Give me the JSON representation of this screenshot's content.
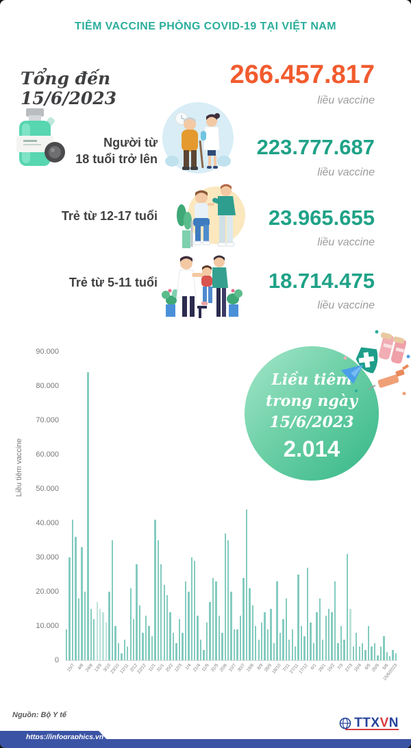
{
  "page": {
    "title": "TIÊM VACCINE PHÒNG COVID-19 TẠI VIỆT NAM"
  },
  "total": {
    "date_label": "Tổng đến 15/6/2023",
    "value": "266.457.817",
    "unit": "liều vaccine"
  },
  "groups": [
    {
      "label_line1": "Người từ",
      "label_line2": "18 tuổi trở lên",
      "value": "223.777.687",
      "unit": "liều vaccine",
      "illustration": "elderly-with-nurse"
    },
    {
      "label_line1": "Trẻ từ 12-17 tuổi",
      "label_line2": "",
      "value": "23.965.655",
      "unit": "liều vaccine",
      "illustration": "teen-vaccination"
    },
    {
      "label_line1": "Trẻ từ 5-11 tuổi",
      "label_line2": "",
      "value": "18.714.475",
      "unit": "liều vaccine",
      "illustration": "child-vaccination"
    }
  ],
  "daily_badge": {
    "line1": "Liều tiêm",
    "line2": "trong ngày",
    "date": "15/6/2023",
    "value": "2.014"
  },
  "chart_data": {
    "type": "bar",
    "ylabel": "Liều tiêm vaccine",
    "ylim": [
      0,
      90000
    ],
    "yticks": [
      "90.000",
      "80.000",
      "70.000",
      "60.000",
      "50.000",
      "40.000",
      "30.000",
      "20.000",
      "10.000",
      "0"
    ],
    "grid": false,
    "bar_color": "#84CBC0",
    "bar_color_light": "#BCE2DB",
    "light_indices": [
      10,
      11,
      12,
      13,
      93
    ],
    "x_tick_labels": [
      "15/7",
      "4/8",
      "24/8",
      "13/9",
      "3/10",
      "23/10",
      "12/11",
      "2/12",
      "22/12",
      "11/1",
      "31/1",
      "20/2",
      "12/3",
      "1/4",
      "21/4",
      "11/5",
      "31/5",
      "20/6",
      "10/7",
      "30/7",
      "19/8",
      "8/9",
      "28/9",
      "18/10",
      "7/11",
      "27/11",
      "17/12",
      "6/1",
      "26/1",
      "15/2",
      "7/3",
      "27/3",
      "16/4",
      "6/5",
      "26/5",
      "5/6",
      "15/6/2023"
    ],
    "values": [
      9000,
      30000,
      41000,
      36000,
      18000,
      33000,
      20000,
      84000,
      15000,
      12000,
      17000,
      15000,
      14000,
      11000,
      20000,
      35000,
      10000,
      5000,
      2000,
      6000,
      4000,
      21000,
      12000,
      28000,
      16000,
      8000,
      13000,
      10000,
      7000,
      41000,
      35000,
      28000,
      22000,
      19000,
      14000,
      8000,
      5000,
      12000,
      8000,
      23000,
      20000,
      30000,
      29000,
      13000,
      6000,
      3000,
      11000,
      17000,
      24000,
      23000,
      13000,
      8000,
      37000,
      35000,
      20000,
      9000,
      9000,
      13000,
      24000,
      44000,
      21000,
      16000,
      10000,
      6000,
      11000,
      14000,
      9000,
      15000,
      5000,
      23000,
      8000,
      12000,
      18000,
      6000,
      9000,
      4000,
      25000,
      10000,
      7000,
      27000,
      11000,
      5000,
      14000,
      18000,
      6000,
      13000,
      15000,
      14000,
      23000,
      5000,
      10000,
      6000,
      31000,
      15000,
      4000,
      8000,
      4000,
      5000,
      3000,
      10000,
      4000,
      5000,
      1500,
      4000,
      7000,
      2500,
      1200,
      3000,
      2014
    ]
  },
  "footer": {
    "source": "Nguồn: Bộ Y tế",
    "url": "https://infographics.vn",
    "agency": "TTXVN"
  },
  "colors": {
    "title_teal": "#2BAE9C",
    "total_orange": "#F15B2E",
    "number_green": "#1FA287",
    "unit_gray": "#9C9C9C",
    "label_dark": "#414042",
    "bar_teal": "#84CBC0",
    "circle_green_start": "#A5E7CA",
    "circle_green_end": "#35B788",
    "footer_blue": "#3A53A4"
  },
  "icons": [
    "vaccine-vial-icon",
    "shield-cross-icon",
    "vials-icon",
    "syringe-icon",
    "paper-plane-icon",
    "globe-icon"
  ]
}
